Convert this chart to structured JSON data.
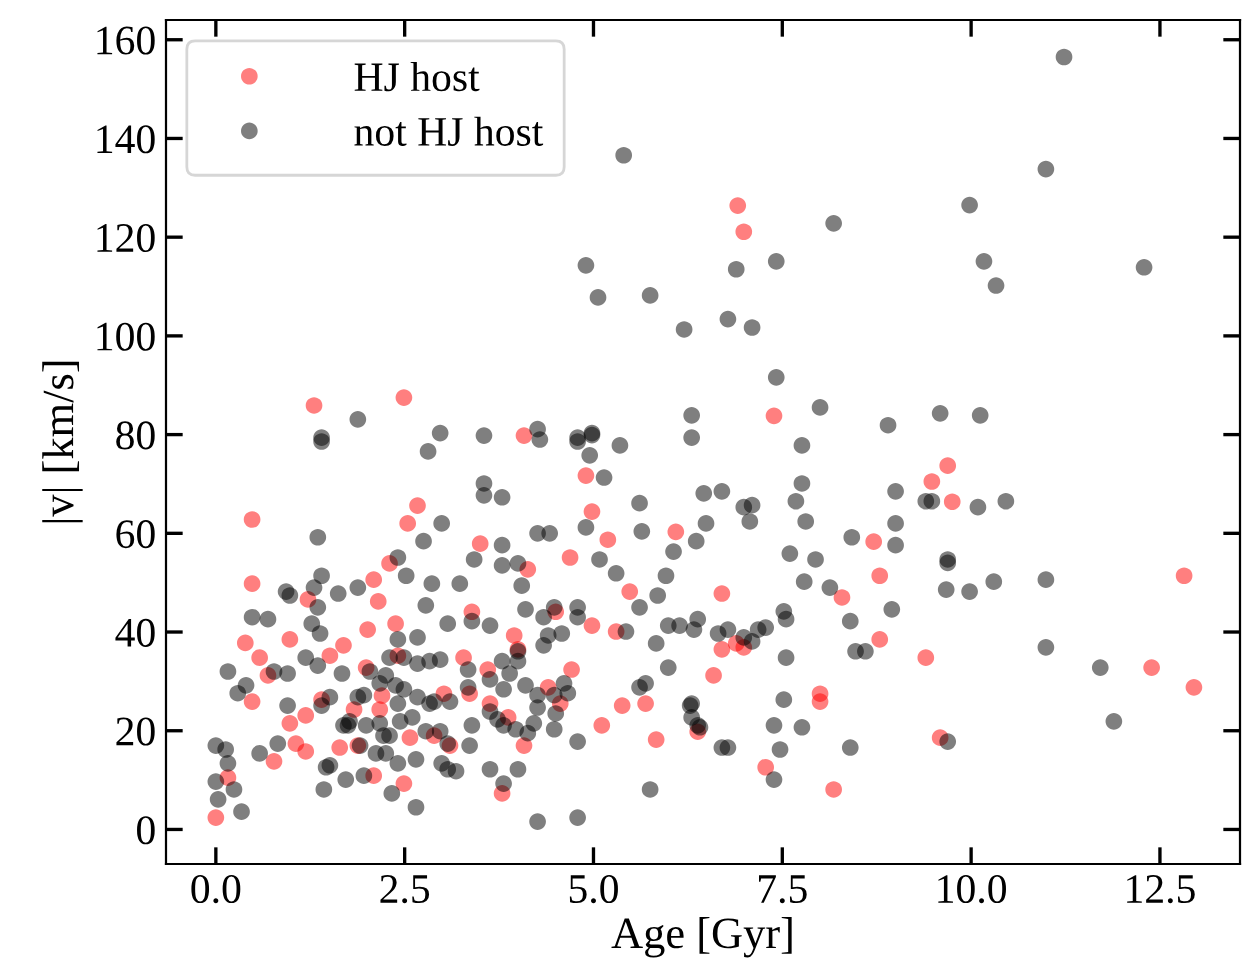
{
  "chart_data": {
    "type": "scatter",
    "xlabel": "Age [Gyr]",
    "ylabel": "|v| [km/s]",
    "xlim": [
      -0.66,
      13.56
    ],
    "ylim": [
      -7,
      164
    ],
    "xticks": [
      {
        "value": 0,
        "label": "0.0"
      },
      {
        "value": 2.5,
        "label": "2.5"
      },
      {
        "value": 5,
        "label": "5.0"
      },
      {
        "value": 7.5,
        "label": "7.5"
      },
      {
        "value": 10,
        "label": "10.0"
      },
      {
        "value": 12.5,
        "label": "12.5"
      }
    ],
    "yticks": [
      0,
      20,
      40,
      60,
      80,
      100,
      120,
      140,
      160
    ],
    "legend": "top left",
    "grid": false,
    "marker": "circle",
    "series": [
      {
        "name": "HJ host",
        "color": "#ff0000",
        "x": [
          0.0,
          0.48,
          0.48,
          0.39,
          0.58,
          0.69,
          0.48,
          0.77,
          0.16,
          0.98,
          1.22,
          1.51,
          1.69,
          1.19,
          0.98,
          1.06,
          1.19,
          1.4,
          1.64,
          1.88,
          1.83,
          2.09,
          2.01,
          2.15,
          2.09,
          2.3,
          2.54,
          2.67,
          2.38,
          2.41,
          1.99,
          2.2,
          2.17,
          2.49,
          2.57,
          3.02,
          3.28,
          3.39,
          3.5,
          3.36,
          3.6,
          3.63,
          3.87,
          3.95,
          4.0,
          4.08,
          3.79,
          3.1,
          2.89,
          4.13,
          4.5,
          4.4,
          4.56,
          4.71,
          4.69,
          4.9,
          4.98,
          4.98,
          5.19,
          5.3,
          5.48,
          5.38,
          5.11,
          5.83,
          5.69,
          6.09,
          1.3,
          2.49,
          4.08,
          6.91,
          6.99,
          7.39,
          9.69,
          9.48,
          9.75,
          8.71,
          8.79,
          8.29,
          8.79,
          9.4,
          6.7,
          6.7,
          6.89,
          6.99,
          6.59,
          8.0,
          8.0,
          6.38,
          7.28,
          8.18,
          9.59,
          12.82,
          12.39,
          12.95
        ],
        "values": [
          2.4,
          62.8,
          49.8,
          37.8,
          34.8,
          31.2,
          25.9,
          13.8,
          10.5,
          38.5,
          46.6,
          35.2,
          37.3,
          23.1,
          21.5,
          17.4,
          15.8,
          26.3,
          16.6,
          17.0,
          24.3,
          10.9,
          40.5,
          46.2,
          50.6,
          53.9,
          62.0,
          65.6,
          41.7,
          35.2,
          32.8,
          27.1,
          24.3,
          9.3,
          18.6,
          27.5,
          34.8,
          44.1,
          57.9,
          27.5,
          32.4,
          25.5,
          22.7,
          39.3,
          36.5,
          17.0,
          7.3,
          17.0,
          19.0,
          52.7,
          44.1,
          28.8,
          25.5,
          32.4,
          55.1,
          71.7,
          64.4,
          41.3,
          58.7,
          40.1,
          48.2,
          25.1,
          21.1,
          18.2,
          25.5,
          60.3,
          85.9,
          87.5,
          79.8,
          126.4,
          121.1,
          83.8,
          73.7,
          70.5,
          66.4,
          58.3,
          51.4,
          47.0,
          38.5,
          34.8,
          47.8,
          36.5,
          37.7,
          36.9,
          31.2,
          27.5,
          25.9,
          19.8,
          12.6,
          8.1,
          18.6,
          51.4,
          32.8,
          28.8
        ]
      },
      {
        "name": "not HJ host",
        "color": "#000000",
        "x": [
          5.4,
          4.9,
          5.06,
          5.75,
          6.2,
          6.3,
          1.88,
          1.4,
          2.97,
          3.55,
          4.26,
          4.79,
          4.98,
          11.23,
          10.99,
          9.98,
          8.18,
          7.42,
          6.89,
          10.17,
          10.33,
          12.29,
          6.78,
          7.1,
          7.42,
          8.0,
          8.9,
          9.59,
          10.12,
          6.3,
          7.76,
          6.46,
          6.7,
          6.49,
          6.36,
          6.99,
          7.1,
          7.07,
          7.76,
          7.68,
          7.81,
          7.6,
          7.94,
          7.79,
          8.13,
          8.42,
          9.0,
          9.0,
          9.0,
          9.4,
          9.48,
          10.09,
          10.46,
          9.69,
          9.69,
          9.67,
          9.98,
          10.3,
          10.99,
          8.95,
          8.4,
          8.47,
          8.6,
          7.52,
          7.55,
          7.28,
          7.18,
          6.99,
          7.1,
          6.78,
          6.65,
          6.38,
          6.33,
          6.14,
          7.55,
          10.99,
          11.71,
          11.89,
          6.3,
          6.3,
          6.41,
          6.7,
          6.78,
          7.52,
          7.39,
          7.76,
          7.47,
          7.39,
          8.4,
          9.69,
          0.0,
          0.13,
          0.0,
          0.03,
          0.16,
          0.24,
          0.34,
          0.16,
          0.29,
          0.4,
          0.58,
          0.82,
          0.48,
          0.69,
          0.93,
          0.98,
          1.35,
          1.4,
          1.3,
          1.35,
          1.27,
          1.38,
          1.19,
          1.35,
          0.77,
          0.95,
          0.95,
          1.4,
          1.51,
          1.62,
          1.67,
          1.46,
          1.72,
          1.96,
          1.88,
          1.75,
          2.17,
          1.91,
          2.25,
          1.96,
          1.4,
          2.81,
          2.41,
          2.52,
          2.41,
          2.67,
          2.86,
          2.99,
          2.75,
          3.23,
          2.78,
          3.07,
          3.39,
          3.63,
          3.55,
          3.55,
          3.79,
          3.42,
          3.79,
          3.79,
          4.0,
          4.05,
          4.1,
          4.34,
          4.48,
          4.58,
          4.79,
          4.79,
          4.26,
          4.42,
          4.79,
          4.98,
          4.95,
          5.35,
          5.14,
          5.61,
          5.64,
          4.9,
          5.08,
          5.3,
          5.61,
          5.85,
          5.96,
          6.06,
          5.99,
          5.83,
          5.99,
          5.69,
          5.75,
          4.79,
          4.5,
          4.48,
          4.26,
          4.1,
          4.4,
          4.34,
          4.0,
          3.79,
          3.63,
          3.34,
          3.1,
          2.89,
          2.97,
          2.83,
          2.67,
          2.49,
          2.3,
          2.25,
          2.38,
          2.49,
          2.67,
          2.83,
          2.41,
          2.17,
          2.04,
          1.88,
          1.77,
          1.99,
          2.22,
          2.44,
          2.6,
          2.78,
          2.97,
          3.07,
          2.99,
          3.07,
          2.65,
          2.41,
          2.33,
          2.65,
          3.39,
          3.63,
          3.73,
          3.81,
          3.97,
          4.13,
          4.21,
          4.26,
          4.48,
          3.36,
          3.63,
          4.0,
          3.81,
          4.26,
          4.79,
          1.43,
          1.51,
          1.69,
          2.12,
          2.3,
          3.18,
          3.81,
          3.89,
          4.0,
          3.34,
          4.61,
          4.66,
          4.29,
          5.43,
          5.61,
          6.38,
          6.28
        ],
        "values": [
          136.6,
          114.3,
          107.8,
          108.2,
          101.3,
          83.9,
          83.1,
          79.4,
          80.3,
          79.8,
          81.1,
          79.4,
          80.3,
          156.5,
          133.8,
          126.5,
          122.8,
          115.1,
          113.5,
          115.1,
          110.2,
          113.9,
          103.4,
          101.7,
          91.6,
          85.5,
          81.9,
          84.3,
          83.9,
          79.4,
          77.8,
          68.1,
          68.5,
          62.0,
          58.4,
          65.3,
          65.7,
          62.4,
          70.1,
          66.5,
          62.4,
          55.9,
          54.7,
          50.2,
          49.0,
          59.2,
          68.5,
          62.0,
          57.6,
          66.5,
          66.5,
          65.3,
          66.5,
          54.7,
          54.0,
          48.6,
          48.2,
          50.2,
          50.6,
          44.6,
          42.2,
          36.1,
          36.1,
          44.2,
          42.6,
          40.9,
          40.5,
          38.9,
          38.1,
          40.5,
          39.7,
          42.6,
          40.5,
          41.3,
          34.8,
          36.9,
          32.8,
          21.9,
          25.5,
          22.7,
          20.7,
          16.6,
          16.6,
          26.3,
          21.1,
          20.7,
          16.2,
          10.1,
          16.6,
          17.8,
          9.7,
          16.2,
          17.0,
          6.1,
          13.4,
          8.1,
          3.6,
          32.0,
          27.6,
          29.2,
          15.4,
          17.4,
          43.0,
          42.6,
          48.2,
          47.4,
          59.2,
          51.4,
          49.0,
          45.0,
          41.7,
          39.7,
          34.8,
          33.2,
          32.0,
          31.6,
          25.1,
          25.1,
          26.8,
          47.8,
          31.6,
          12.6,
          10.1,
          27.2,
          49.0,
          21.1,
          21.5,
          17.0,
          15.4,
          10.9,
          78.6,
          76.6,
          55.1,
          51.4,
          38.5,
          38.9,
          49.8,
          62.0,
          58.4,
          49.8,
          45.4,
          41.7,
          42.2,
          41.3,
          70.1,
          67.7,
          67.3,
          54.7,
          57.6,
          53.5,
          53.9,
          49.4,
          44.6,
          43.0,
          45.0,
          39.7,
          45.0,
          43.0,
          60.0,
          60.0,
          78.6,
          79.9,
          75.8,
          77.8,
          71.3,
          66.1,
          60.4,
          61.2,
          54.7,
          51.9,
          45.0,
          47.4,
          51.4,
          56.3,
          41.3,
          37.7,
          32.8,
          29.6,
          8.1,
          17.8,
          23.5,
          27.2,
          27.2,
          29.2,
          39.3,
          37.3,
          34.1,
          34.1,
          30.4,
          28.8,
          25.9,
          25.9,
          34.4,
          34.1,
          33.6,
          34.8,
          34.8,
          31.2,
          29.2,
          28.4,
          26.8,
          25.5,
          25.5,
          29.6,
          32.0,
          26.8,
          21.9,
          21.1,
          19.0,
          21.9,
          22.7,
          19.9,
          19.9,
          17.4,
          13.4,
          12.2,
          14.2,
          13.4,
          7.3,
          4.5,
          21.1,
          23.9,
          22.3,
          21.1,
          20.3,
          19.5,
          21.5,
          24.7,
          20.3,
          17.0,
          12.2,
          12.2,
          9.3,
          1.6,
          2.4,
          8.1,
          13.0,
          21.1,
          15.4,
          19.0,
          11.8,
          28.4,
          31.6,
          36.1,
          32.4,
          29.6,
          27.6,
          79.0,
          40.1,
          28.8,
          21.1,
          25.1
        ]
      }
    ]
  }
}
